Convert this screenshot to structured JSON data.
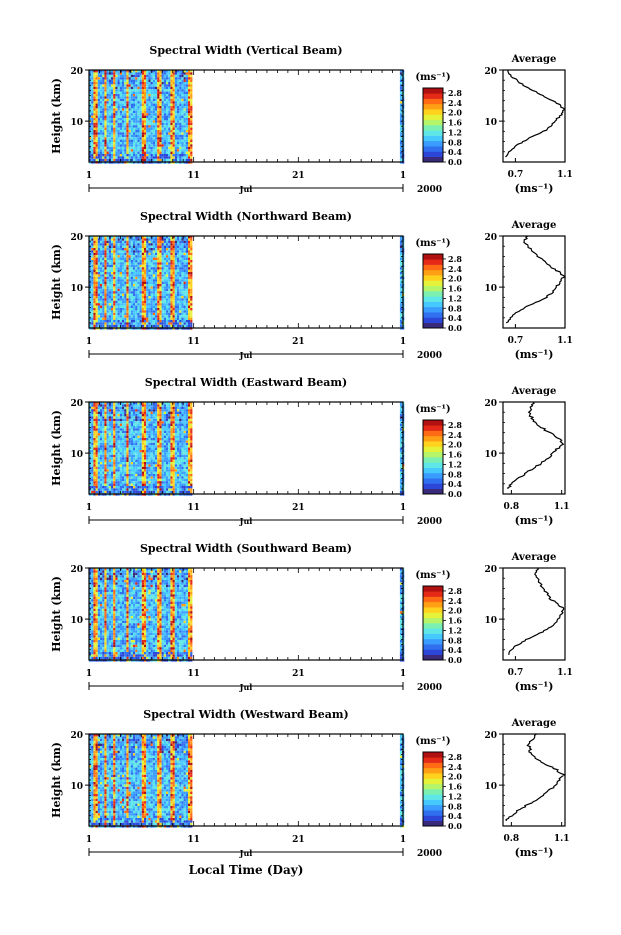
{
  "figure": {
    "xlabel": "Local Time (Day)",
    "month_label": "Jul",
    "year_label": "2000"
  },
  "colorbar": {
    "unit": "(ms⁻¹)",
    "ticks": [
      "0.0",
      "0.4",
      "0.8",
      "1.2",
      "1.6",
      "2.0",
      "2.4",
      "2.8"
    ],
    "colors": [
      "#3a2a7a",
      "#2c46d8",
      "#2f6ff0",
      "#3a9cff",
      "#45c9ff",
      "#5fe6e6",
      "#7cf0b0",
      "#b6f46a",
      "#e4f23a",
      "#ffd21e",
      "#ffa014",
      "#ff6a14",
      "#e42a16",
      "#b01010"
    ]
  },
  "chart_data": [
    {
      "type": "heatmap",
      "title": "Spectral Width (Vertical Beam)",
      "ylabel": "Height (km)",
      "xlim": [
        1,
        31
      ],
      "ylim": [
        2,
        20
      ],
      "xticks": [
        "1",
        "11",
        "21",
        "1"
      ],
      "yticks": [
        "10",
        "20"
      ],
      "data_ranges": [
        [
          1,
          10.8
        ],
        [
          30.7,
          31
        ]
      ],
      "profile": {
        "title": "Average",
        "xlabel": "(ms⁻¹)",
        "xticks": [
          "0.7",
          "1.1"
        ],
        "xlim": [
          0.6,
          1.1
        ],
        "yticks": [
          "10",
          "20"
        ],
        "heights": [
          3,
          4,
          5,
          6,
          7,
          8,
          9,
          10,
          11,
          12,
          13,
          14,
          15,
          16,
          17,
          18,
          19,
          20
        ],
        "values": [
          0.62,
          0.65,
          0.7,
          0.76,
          0.84,
          0.93,
          0.99,
          1.02,
          1.06,
          1.09,
          1.07,
          1.0,
          0.92,
          0.84,
          0.77,
          0.71,
          0.66,
          0.64
        ]
      }
    },
    {
      "type": "heatmap",
      "title": "Spectral Width (Northward Beam)",
      "ylabel": "Height (km)",
      "xlim": [
        1,
        31
      ],
      "ylim": [
        2,
        20
      ],
      "xticks": [
        "1",
        "11",
        "21",
        "1"
      ],
      "yticks": [
        "10",
        "20"
      ],
      "data_ranges": [
        [
          1,
          10.8
        ],
        [
          30.7,
          31
        ]
      ],
      "profile": {
        "title": "Average",
        "xlabel": "(ms⁻¹)",
        "xticks": [
          "0.7",
          "1.1"
        ],
        "xlim": [
          0.6,
          1.1
        ],
        "yticks": [
          "10",
          "20"
        ],
        "heights": [
          3,
          4,
          5,
          6,
          7,
          8,
          9,
          10,
          11,
          12,
          13,
          14,
          15,
          16,
          17,
          18,
          19,
          20
        ],
        "values": [
          0.63,
          0.66,
          0.71,
          0.78,
          0.86,
          0.95,
          1.0,
          1.03,
          1.06,
          1.09,
          1.05,
          0.98,
          0.94,
          0.88,
          0.84,
          0.8,
          0.77,
          0.8
        ]
      }
    },
    {
      "type": "heatmap",
      "title": "Spectral Width (Eastward Beam)",
      "ylabel": "Height (km)",
      "xlim": [
        1,
        31
      ],
      "ylim": [
        2,
        20
      ],
      "xticks": [
        "1",
        "11",
        "21",
        "1"
      ],
      "yticks": [
        "10",
        "20"
      ],
      "data_ranges": [
        [
          1,
          10.8
        ],
        [
          30.7,
          31
        ]
      ],
      "profile": {
        "title": "Average",
        "xlabel": "(ms⁻¹)",
        "xticks": [
          "0.8",
          "1.1"
        ],
        "xlim": [
          0.75,
          1.12
        ],
        "yticks": [
          "10",
          "20"
        ],
        "heights": [
          3,
          4,
          5,
          6,
          7,
          8,
          9,
          10,
          11,
          12,
          13,
          14,
          15,
          16,
          17,
          18,
          19,
          20
        ],
        "values": [
          0.78,
          0.8,
          0.84,
          0.88,
          0.93,
          0.98,
          1.02,
          1.05,
          1.08,
          1.11,
          1.08,
          1.03,
          0.98,
          0.94,
          0.92,
          0.91,
          0.92,
          0.93
        ]
      }
    },
    {
      "type": "heatmap",
      "title": "Spectral Width (Southward Beam)",
      "ylabel": "Height (km)",
      "xlim": [
        1,
        31
      ],
      "ylim": [
        2,
        20
      ],
      "xticks": [
        "1",
        "11",
        "21",
        "1"
      ],
      "yticks": [
        "10",
        "20"
      ],
      "data_ranges": [
        [
          1,
          10.8
        ],
        [
          30.7,
          31
        ]
      ],
      "profile": {
        "title": "Average",
        "xlabel": "(ms⁻¹)",
        "xticks": [
          "0.7",
          "1.1"
        ],
        "xlim": [
          0.6,
          1.1
        ],
        "yticks": [
          "10",
          "20"
        ],
        "heights": [
          3,
          4,
          5,
          6,
          7,
          8,
          9,
          10,
          11,
          12,
          13,
          14,
          15,
          16,
          17,
          18,
          19,
          20
        ],
        "values": [
          0.64,
          0.67,
          0.72,
          0.79,
          0.87,
          0.96,
          1.01,
          1.04,
          1.07,
          1.09,
          1.04,
          0.98,
          0.96,
          0.92,
          0.9,
          0.88,
          0.86,
          0.88
        ]
      }
    },
    {
      "type": "heatmap",
      "title": "Spectral Width (Westward Beam)",
      "ylabel": "Height (km)",
      "xlim": [
        1,
        31
      ],
      "ylim": [
        2,
        20
      ],
      "xticks": [
        "1",
        "11",
        "21",
        "1"
      ],
      "yticks": [
        "10",
        "20"
      ],
      "data_ranges": [
        [
          1,
          10.8
        ],
        [
          30.7,
          31
        ]
      ],
      "profile": {
        "title": "Average",
        "xlabel": "(ms⁻¹)",
        "xticks": [
          "0.8",
          "1.1"
        ],
        "xlim": [
          0.75,
          1.12
        ],
        "yticks": [
          "10",
          "20"
        ],
        "heights": [
          3,
          4,
          5,
          6,
          7,
          8,
          9,
          10,
          11,
          12,
          13,
          14,
          15,
          16,
          17,
          18,
          19,
          20
        ],
        "values": [
          0.77,
          0.8,
          0.84,
          0.89,
          0.94,
          0.99,
          1.03,
          1.06,
          1.09,
          1.11,
          1.07,
          1.01,
          0.95,
          0.92,
          0.91,
          0.9,
          0.93,
          0.95
        ]
      }
    }
  ]
}
